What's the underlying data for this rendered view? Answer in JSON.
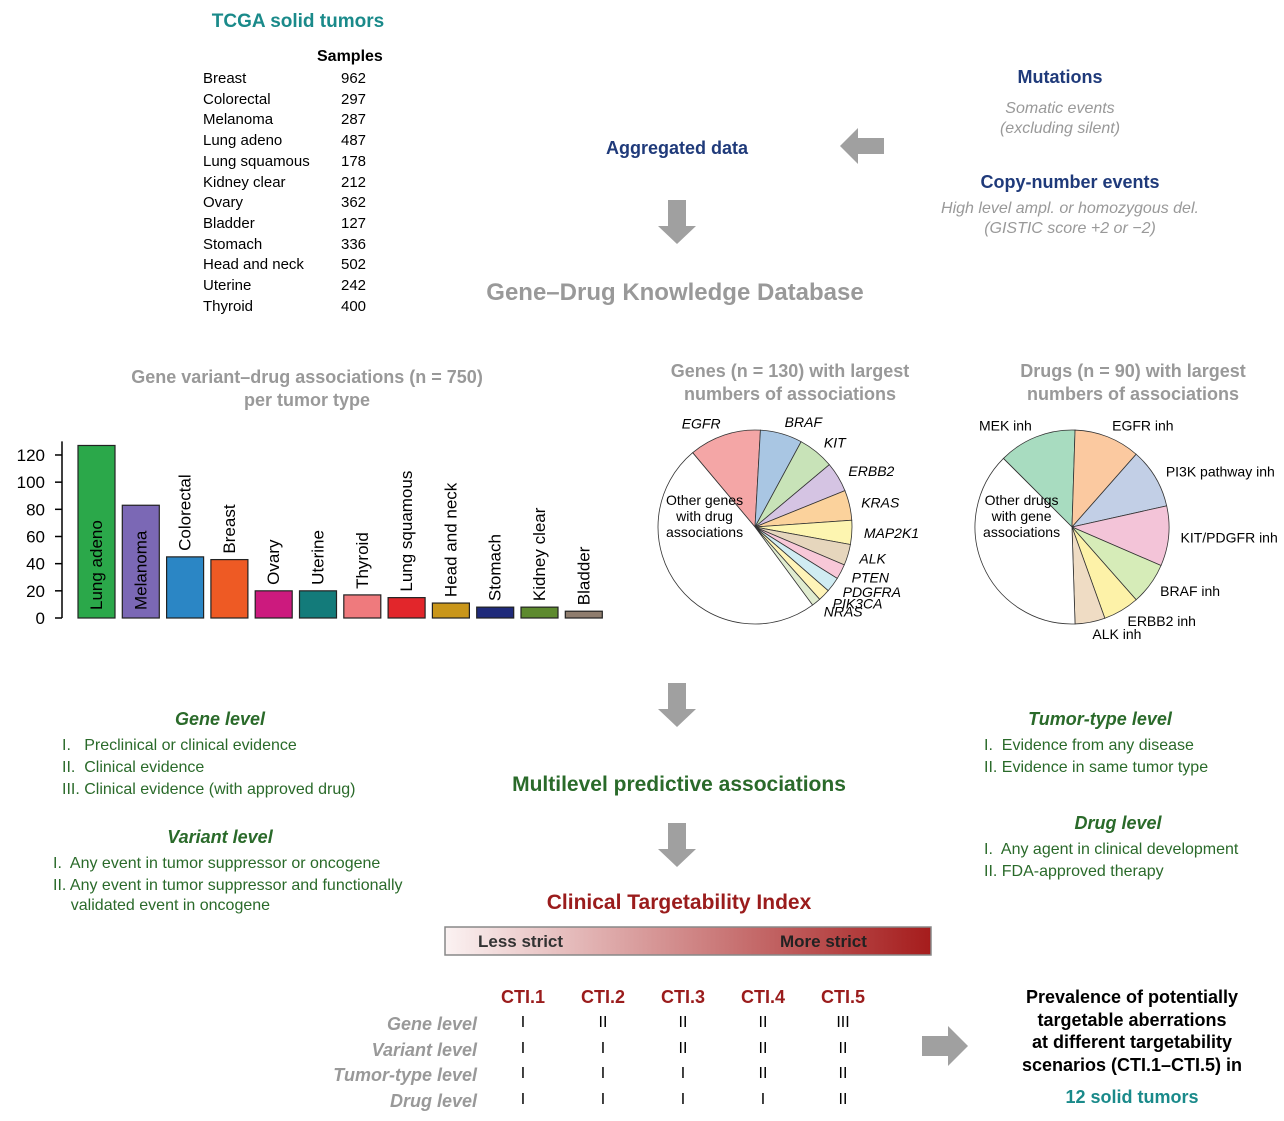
{
  "tcga": {
    "title": "TCGA solid tumors",
    "column_header": "Samples",
    "rows": [
      [
        "Breast",
        962
      ],
      [
        "Colorectal",
        297
      ],
      [
        "Melanoma",
        287
      ],
      [
        "Lung adeno",
        487
      ],
      [
        "Lung squamous",
        178
      ],
      [
        "Kidney clear",
        212
      ],
      [
        "Ovary",
        362
      ],
      [
        "Bladder",
        127
      ],
      [
        "Stomach",
        336
      ],
      [
        "Head and neck",
        502
      ],
      [
        "Uterine",
        242
      ],
      [
        "Thyroid",
        400
      ]
    ]
  },
  "mutations": {
    "title": "Mutations",
    "description": "Somatic events\n(excluding silent)"
  },
  "copy_number": {
    "title": "Copy-number events",
    "description": "High level ampl. or homozygous del.\n(GISTIC score +2 or −2)"
  },
  "aggregated": "Aggregated data",
  "database": "Gene–Drug Knowledge Database",
  "chart_data": [
    {
      "type": "bar",
      "title": "Gene variant–drug associations (n = 750)\nper tumor type",
      "categories": [
        "Lung adeno",
        "Melanoma",
        "Colorectal",
        "Breast",
        "Ovary",
        "Uterine",
        "Thyroid",
        "Lung squamous",
        "Head and neck",
        "Stomach",
        "Kidney clear",
        "Bladder"
      ],
      "values": [
        127,
        83,
        45,
        43,
        20,
        20,
        17,
        15,
        11,
        8,
        8,
        5
      ],
      "colors": [
        "#2ba84a",
        "#7b68b5",
        "#2b86c5",
        "#ee5a24",
        "#cc1a7e",
        "#137b7a",
        "#ef7a7d",
        "#e2262b",
        "#c9961a",
        "#1f2a7a",
        "#5d8a2e",
        "#8f7d6e"
      ],
      "ylim": [
        0,
        130
      ],
      "yticks": [
        0,
        20,
        40,
        60,
        80,
        100,
        120
      ]
    },
    {
      "type": "pie",
      "title": "Genes (n = 130) with largest\nnumbers of associations",
      "categories": [
        "EGFR",
        "BRAF",
        "KIT",
        "ERBB2",
        "KRAS",
        "MAP2K1",
        "ALK",
        "PTEN",
        "PDGFRA",
        "PIK3CA",
        "NRAS",
        "Other genes\nwith drug\nassociations"
      ],
      "values": [
        12,
        7,
        6,
        5,
        5,
        4,
        3.5,
        2.5,
        2.5,
        2,
        1.5,
        49
      ],
      "colors": [
        "#f4a6a6",
        "#a9c6e3",
        "#c8e3b8",
        "#d5c4e3",
        "#fbd29c",
        "#fdf5b0",
        "#e6d6bd",
        "#f8c8d8",
        "#d0ecf2",
        "#fff4b8",
        "#e0ecd0",
        "#ffffff"
      ]
    },
    {
      "type": "pie",
      "title": "Drugs (n = 90) with largest\nnumbers of associations",
      "categories": [
        "MEK inh",
        "EGFR inh",
        "PI3K pathway inh",
        "KIT/PDGFR inh",
        "BRAF inh",
        "ERBB2 inh",
        "ALK inh",
        "Other drugs\nwith gene\nassociations"
      ],
      "values": [
        13,
        11,
        10,
        10,
        7,
        6,
        5,
        38
      ],
      "colors": [
        "#a8dcc0",
        "#fbc9a0",
        "#c2cfe6",
        "#f3c4d8",
        "#d6ecb8",
        "#fdf2a8",
        "#efdcc4",
        "#ffffff"
      ]
    }
  ],
  "gene_level": {
    "title": "Gene level",
    "items": [
      "I.   Preclinical or clinical evidence",
      "II.  Clinical evidence",
      "III. Clinical evidence (with approved drug)"
    ]
  },
  "variant_level": {
    "title": "Variant level",
    "items": [
      "I.  Any event in tumor suppressor or oncogene",
      "II. Any event in tumor suppressor and functionally\n    validated event in oncogene"
    ]
  },
  "tumor_type_level": {
    "title": "Tumor-type level",
    "items": [
      "I.  Evidence from any disease",
      "II. Evidence in same tumor type"
    ]
  },
  "drug_level": {
    "title": "Drug level",
    "items": [
      "I.  Any agent in clinical development",
      "II. FDA-approved therapy"
    ]
  },
  "multilevel": "Multilevel predictive associations",
  "cti": {
    "title": "Clinical Targetability Index",
    "gradient_labels": [
      "Less strict",
      "More strict"
    ],
    "columns": [
      "CTI.1",
      "CTI.2",
      "CTI.3",
      "CTI.4",
      "CTI.5"
    ],
    "rows": [
      {
        "label": "Gene level",
        "values": [
          "I",
          "II",
          "II",
          "II",
          "III"
        ]
      },
      {
        "label": "Variant level",
        "values": [
          "I",
          "I",
          "II",
          "II",
          "II"
        ]
      },
      {
        "label": "Tumor-type level",
        "values": [
          "I",
          "I",
          "I",
          "II",
          "II"
        ]
      },
      {
        "label": "Drug level",
        "values": [
          "I",
          "I",
          "I",
          "I",
          "II"
        ]
      }
    ]
  },
  "prevalence": {
    "text": "Prevalence of potentially\ntargetable aberrations\nat different targetability\nscenarios (CTI.1–CTI.5) in",
    "highlight": "12 solid tumors"
  }
}
